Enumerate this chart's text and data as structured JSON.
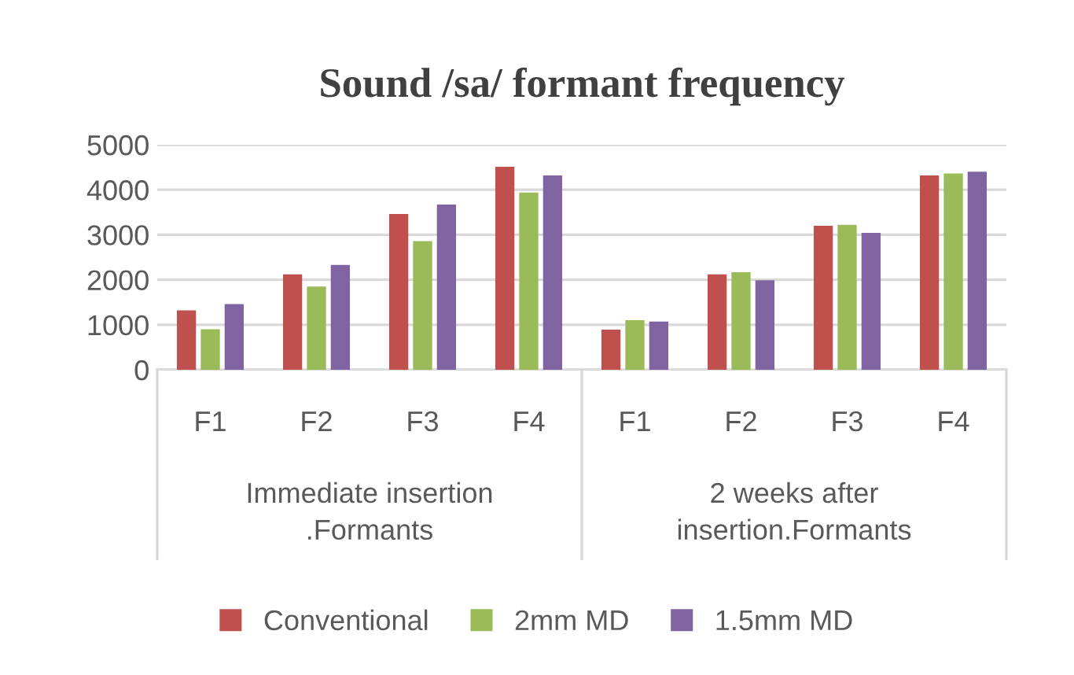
{
  "chart_data": {
    "type": "bar",
    "title": "Sound /sa/ formant frequency",
    "categories": [
      "F1",
      "F2",
      "F3",
      "F4",
      "F1",
      "F2",
      "F3",
      "F4"
    ],
    "series": [
      {
        "name": "Conventional",
        "color": "#c0504d",
        "values": [
          1320,
          2120,
          3460,
          4510,
          890,
          2120,
          3200,
          4320
        ]
      },
      {
        "name": "2mm MD",
        "color": "#9bbb59",
        "values": [
          900,
          1850,
          2860,
          3940,
          1100,
          2170,
          3220,
          4360
        ]
      },
      {
        "name": "1.5mm MD",
        "color": "#8064a2",
        "values": [
          1460,
          2330,
          3670,
          4320,
          1070,
          1990,
          3040,
          4400
        ]
      }
    ],
    "annotations": [
      "Immediate insertion\n.Formants",
      "2 weeks after\ninsertion.Formants"
    ],
    "ylim": [
      0,
      5000
    ],
    "yticks": [
      0,
      1000,
      2000,
      3000,
      4000,
      5000
    ],
    "grid": "y",
    "legend": "bottom"
  }
}
